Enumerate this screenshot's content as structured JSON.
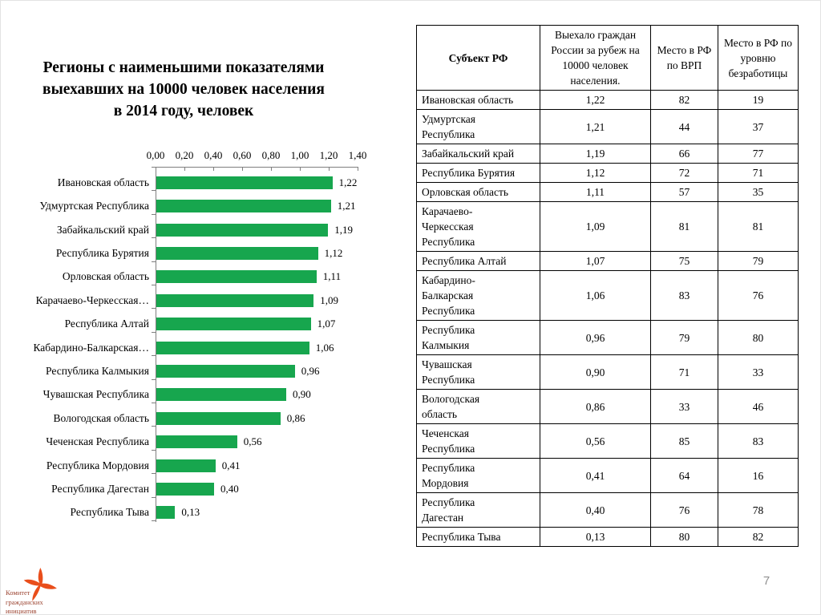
{
  "page": {
    "number": "7"
  },
  "logo": {
    "org_name": "Комитет\nгражданских\nинициатив",
    "bird_color": "#e94e1b",
    "text_color": "#9c4532"
  },
  "chart_data": {
    "type": "bar",
    "orientation": "horizontal",
    "title": "Регионы с наименьшими показателями\nвыехавших на 10000 человек населения\nв 2014 году, человек",
    "categories": [
      "Ивановская область",
      "Удмуртская Республика",
      "Забайкальский край",
      "Республика Бурятия",
      "Орловская область",
      "Карачаево-Черкесская…",
      "Республика Алтай",
      "Кабардино-Балкарская…",
      "Республика Калмыкия",
      "Чувашская Республика",
      "Вологодская область",
      "Чеченская Республика",
      "Республика Мордовия",
      "Республика Дагестан",
      "Республика Тыва"
    ],
    "values": [
      1.22,
      1.21,
      1.19,
      1.12,
      1.11,
      1.09,
      1.07,
      1.06,
      0.96,
      0.9,
      0.86,
      0.56,
      0.41,
      0.4,
      0.13
    ],
    "value_labels": [
      "1,22",
      "1,21",
      "1,19",
      "1,12",
      "1,11",
      "1,09",
      "1,07",
      "1,06",
      "0,96",
      "0,90",
      "0,86",
      "0,56",
      "0,41",
      "0,40",
      "0,13"
    ],
    "x_tick_labels": [
      "0,00",
      "0,20",
      "0,40",
      "0,60",
      "0,80",
      "1,00",
      "1,20",
      "1,40"
    ],
    "xlim": [
      0,
      1.4
    ],
    "bar_color": "#17a64e",
    "grid": false,
    "legend": false,
    "xlabel": "",
    "ylabel": ""
  },
  "table": {
    "headers": [
      "Субъект РФ",
      "Выехало граждан России за рубеж на 10000 человек населения.",
      "Место в РФ по ВРП",
      "Место в РФ по уровню безработицы"
    ],
    "rows": [
      {
        "name": "Ивановская область",
        "outflow": "1,22",
        "vrp_rank": "82",
        "unemployment_rank": "19"
      },
      {
        "name": "Удмуртская\nРеспублика",
        "outflow": "1,21",
        "vrp_rank": "44",
        "unemployment_rank": "37"
      },
      {
        "name": "Забайкальский край",
        "outflow": "1,19",
        "vrp_rank": "66",
        "unemployment_rank": "77"
      },
      {
        "name": "Республика Бурятия",
        "outflow": "1,12",
        "vrp_rank": "72",
        "unemployment_rank": "71"
      },
      {
        "name": "Орловская область",
        "outflow": "1,11",
        "vrp_rank": "57",
        "unemployment_rank": "35"
      },
      {
        "name": "Карачаево-\nЧеркесская\nРеспублика",
        "outflow": "1,09",
        "vrp_rank": "81",
        "unemployment_rank": "81"
      },
      {
        "name": "Республика Алтай",
        "outflow": "1,07",
        "vrp_rank": "75",
        "unemployment_rank": "79"
      },
      {
        "name": "Кабардино-\nБалкарская\nРеспублика",
        "outflow": "1,06",
        "vrp_rank": "83",
        "unemployment_rank": "76"
      },
      {
        "name": "Республика\nКалмыкия",
        "outflow": "0,96",
        "vrp_rank": "79",
        "unemployment_rank": "80"
      },
      {
        "name": "Чувашская\nРеспублика",
        "outflow": "0,90",
        "vrp_rank": "71",
        "unemployment_rank": "33"
      },
      {
        "name": "Вологодская\nобласть",
        "outflow": "0,86",
        "vrp_rank": "33",
        "unemployment_rank": "46"
      },
      {
        "name": "Чеченская\nРеспублика",
        "outflow": "0,56",
        "vrp_rank": "85",
        "unemployment_rank": "83"
      },
      {
        "name": "Республика\nМордовия",
        "outflow": "0,41",
        "vrp_rank": "64",
        "unemployment_rank": "16"
      },
      {
        "name": "Республика\nДагестан",
        "outflow": "0,40",
        "vrp_rank": "76",
        "unemployment_rank": "78"
      },
      {
        "name": "Республика Тыва",
        "outflow": "0,13",
        "vrp_rank": "80",
        "unemployment_rank": "82"
      }
    ]
  }
}
